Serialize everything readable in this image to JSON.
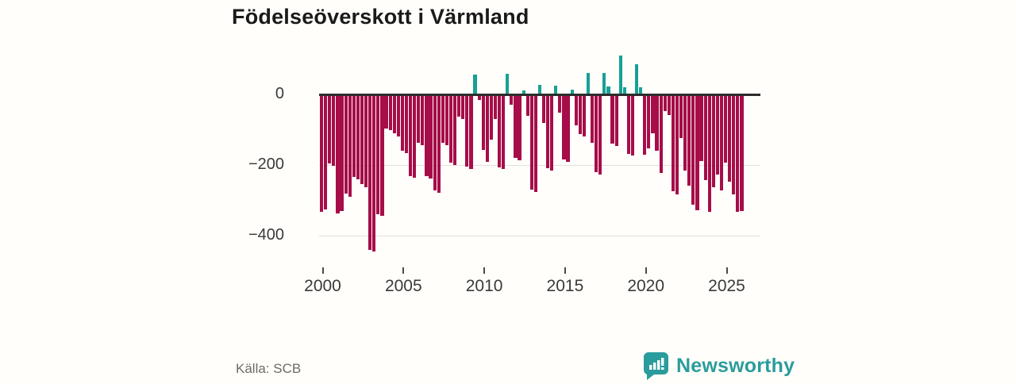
{
  "title": "Födelseöverskott i Värmland",
  "source": "Källa: SCB",
  "branding": {
    "name": "Newsworthy"
  },
  "chart_data": {
    "type": "bar",
    "title": "Födelseöverskott i Värmland",
    "xlabel": "",
    "ylabel": "",
    "frequency": "quarter",
    "start_period": "2000 Q1",
    "end_period": "2026 Q1",
    "ylim": [
      -460,
      120
    ],
    "grid": true,
    "legend_position": "none",
    "yticks": [
      0,
      -200,
      -400
    ],
    "ytick_labels": [
      "0",
      "−200",
      "−400"
    ],
    "xticks": [
      2000,
      2005,
      2010,
      2015,
      2020,
      2025
    ],
    "colors": {
      "positive": "#17a095",
      "negative": "#a60d49",
      "axis": "#2d2d2d",
      "grid": "#e2e0dd"
    },
    "series": [
      {
        "name": "Födelseöverskott (kvartal)",
        "values": [
          -330,
          -323,
          -192,
          -199,
          -334,
          -328,
          -279,
          -286,
          -230,
          -237,
          -252,
          -259,
          -437,
          -443,
          -336,
          -342,
          -93,
          -99,
          -108,
          -115,
          -157,
          -163,
          -228,
          -234,
          -135,
          -141,
          -229,
          -235,
          -270,
          -276,
          -134,
          -140,
          -191,
          -197,
          -60,
          -66,
          -202,
          -208,
          55,
          -12,
          -155,
          -188,
          -124,
          -66,
          -203,
          -209,
          56,
          -25,
          -177,
          -183,
          8,
          -58,
          -267,
          -273,
          24,
          -78,
          -207,
          -213,
          22,
          -48,
          -182,
          -188,
          11,
          -84,
          -109,
          -115,
          58,
          -134,
          -217,
          -223,
          58,
          20,
          -136,
          -142,
          107,
          19,
          -165,
          -171,
          84,
          17,
          -167,
          -150,
          -107,
          -156,
          -220,
          -44,
          -55,
          -272,
          -280,
          -120,
          -212,
          -255,
          -310,
          -325,
          -185,
          -240,
          -330,
          -260,
          -225,
          -270,
          -190,
          -245,
          -280,
          -330,
          -328
        ]
      }
    ]
  }
}
